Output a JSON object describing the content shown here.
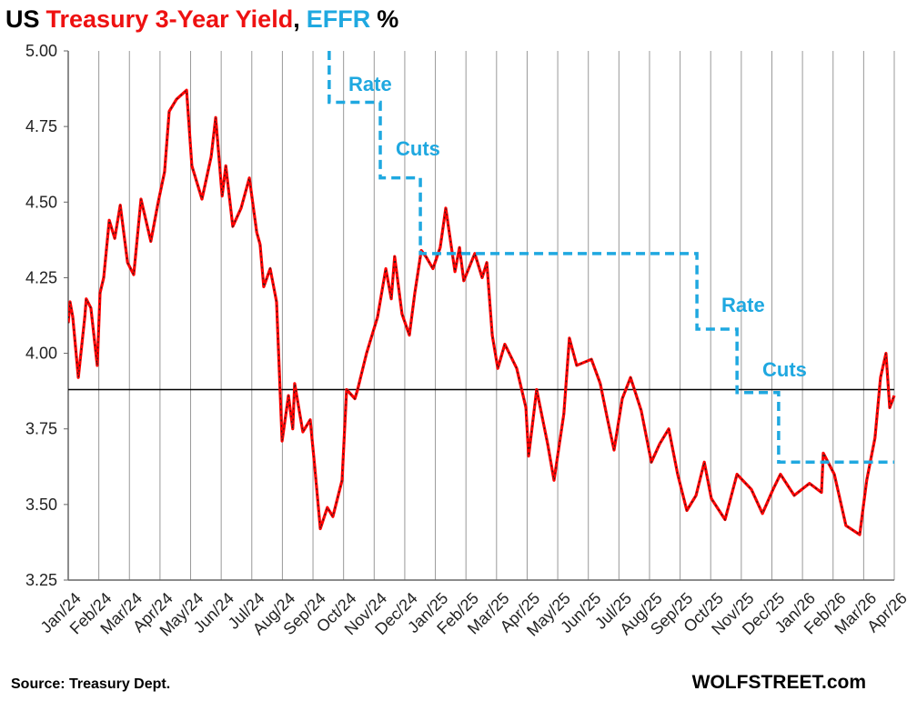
{
  "chart_data": {
    "type": "line",
    "title_parts": [
      {
        "text": "US",
        "color": "#000000"
      },
      {
        "text": "Treasury 3-Year Yield",
        "color": "#ee1111"
      },
      {
        "text": ",",
        "color": "#000000"
      },
      {
        "text": "EFFR",
        "color": "#1fa8e0"
      },
      {
        "text": "%",
        "color": "#000000"
      }
    ],
    "source": "Source: Treasury Dept.",
    "credit": "WOLFSTREET.com",
    "annotations": [
      "Rate",
      "Cuts",
      "Rate",
      "Cuts"
    ],
    "xlim": [
      0,
      27
    ],
    "xticks": [
      {
        "value": 0,
        "label": "Jan/24"
      },
      {
        "value": 1,
        "label": "Feb/24"
      },
      {
        "value": 2,
        "label": "Mar/24"
      },
      {
        "value": 3,
        "label": "Apr/24"
      },
      {
        "value": 4,
        "label": "May/24"
      },
      {
        "value": 5,
        "label": "Jun/24"
      },
      {
        "value": 6,
        "label": "Jul/24"
      },
      {
        "value": 7,
        "label": "Aug/24"
      },
      {
        "value": 8,
        "label": "Sep/24"
      },
      {
        "value": 9,
        "label": "Oct/24"
      },
      {
        "value": 10,
        "label": "Nov/24"
      },
      {
        "value": 11,
        "label": "Dec/24"
      },
      {
        "value": 12,
        "label": "Jan/25"
      },
      {
        "value": 13,
        "label": "Feb/25"
      },
      {
        "value": 14,
        "label": "Mar/25"
      },
      {
        "value": 15,
        "label": "Apr/25"
      },
      {
        "value": 16,
        "label": "May/25"
      },
      {
        "value": 17,
        "label": "Jun/25"
      },
      {
        "value": 18,
        "label": "Jul/25"
      },
      {
        "value": 19,
        "label": "Aug/25"
      },
      {
        "value": 20,
        "label": "Sep/25"
      },
      {
        "value": 21,
        "label": "Oct/25"
      },
      {
        "value": 22,
        "label": "Nov/25"
      },
      {
        "value": 23,
        "label": "Dec/25"
      },
      {
        "value": 24,
        "label": "Jan/26"
      },
      {
        "value": 25,
        "label": "Feb/26"
      },
      {
        "value": 26,
        "label": "Mar/26"
      },
      {
        "value": 27,
        "label": "Apr/26"
      }
    ],
    "ylim": [
      3.25,
      5.0
    ],
    "yticks": [
      {
        "value": 3.25,
        "label": "3.25"
      },
      {
        "value": 3.5,
        "label": "3.50"
      },
      {
        "value": 3.75,
        "label": "3.75"
      },
      {
        "value": 4,
        "label": "4.00"
      },
      {
        "value": 4.25,
        "label": "4.25"
      },
      {
        "value": 4.5,
        "label": "4.50"
      },
      {
        "value": 4.75,
        "label": "4.75"
      },
      {
        "value": 5,
        "label": "5.00"
      }
    ],
    "grid": true,
    "hline": 3.88,
    "series": [
      {
        "name": "Treasury 3-Year Yield",
        "color": "#ff0000",
        "style": "solid",
        "x": [
          0,
          0.06,
          0.15,
          0.33,
          0.54,
          0.59,
          0.74,
          0.95,
          1.04,
          1.16,
          1.34,
          1.52,
          1.7,
          1.94,
          2.14,
          2.38,
          2.7,
          2.94,
          3.15,
          3.3,
          3.54,
          3.87,
          4.04,
          4.37,
          4.67,
          4.82,
          5.03,
          5.15,
          5.38,
          5.65,
          5.92,
          6.16,
          6.27,
          6.39,
          6.6,
          6.81,
          6.99,
          7.2,
          7.34,
          7.4,
          7.67,
          7.91,
          8.06,
          8.24,
          8.47,
          8.65,
          8.95,
          9.1,
          9.37,
          9.46,
          9.75,
          10.11,
          10.38,
          10.56,
          10.67,
          10.91,
          11.15,
          11.33,
          11.54,
          11.69,
          11.92,
          12.16,
          12.34,
          12.64,
          12.79,
          12.93,
          13.29,
          13.53,
          13.68,
          13.86,
          14.04,
          14.27,
          14.66,
          14.96,
          15.05,
          15.31,
          15.67,
          15.88,
          16.2,
          16.38,
          16.62,
          17.1,
          17.39,
          17.63,
          17.84,
          18.11,
          18.38,
          18.73,
          19.06,
          19.33,
          19.63,
          19.92,
          20.22,
          20.52,
          20.79,
          21.02,
          21.47,
          21.86,
          22.33,
          22.69,
          23.04,
          23.28,
          23.73,
          24.23,
          24.62,
          24.68,
          25.04,
          25.42,
          25.87,
          26.1,
          26.37,
          26.55,
          26.73,
          26.85,
          27
        ],
        "values": [
          4.1,
          4.17,
          4.12,
          3.92,
          4.12,
          4.18,
          4.15,
          3.96,
          4.2,
          4.25,
          4.44,
          4.38,
          4.49,
          4.3,
          4.26,
          4.51,
          4.37,
          4.5,
          4.6,
          4.8,
          4.84,
          4.87,
          4.62,
          4.51,
          4.65,
          4.78,
          4.52,
          4.62,
          4.42,
          4.48,
          4.58,
          4.4,
          4.36,
          4.22,
          4.28,
          4.17,
          3.71,
          3.86,
          3.75,
          3.9,
          3.74,
          3.78,
          3.62,
          3.42,
          3.49,
          3.46,
          3.58,
          3.88,
          3.85,
          3.88,
          4.0,
          4.12,
          4.28,
          4.18,
          4.32,
          4.13,
          4.06,
          4.2,
          4.34,
          4.32,
          4.28,
          4.35,
          4.48,
          4.27,
          4.35,
          4.24,
          4.33,
          4.25,
          4.3,
          4.06,
          3.95,
          4.03,
          3.95,
          3.82,
          3.66,
          3.88,
          3.7,
          3.58,
          3.8,
          4.05,
          3.96,
          3.98,
          3.9,
          3.78,
          3.68,
          3.85,
          3.92,
          3.81,
          3.64,
          3.7,
          3.75,
          3.6,
          3.48,
          3.53,
          3.64,
          3.52,
          3.45,
          3.6,
          3.55,
          3.47,
          3.55,
          3.6,
          3.53,
          3.57,
          3.54,
          3.67,
          3.6,
          3.43,
          3.4,
          3.58,
          3.72,
          3.92,
          4.0,
          3.82,
          3.86
        ]
      },
      {
        "name": "EFFR",
        "color": "#1fa8e0",
        "style": "step",
        "x": [
          8.53,
          10.2,
          11.51,
          20.55,
          21.86,
          23.22
        ],
        "values": [
          4.83,
          4.58,
          4.33,
          4.08,
          3.87,
          3.64
        ]
      }
    ]
  }
}
